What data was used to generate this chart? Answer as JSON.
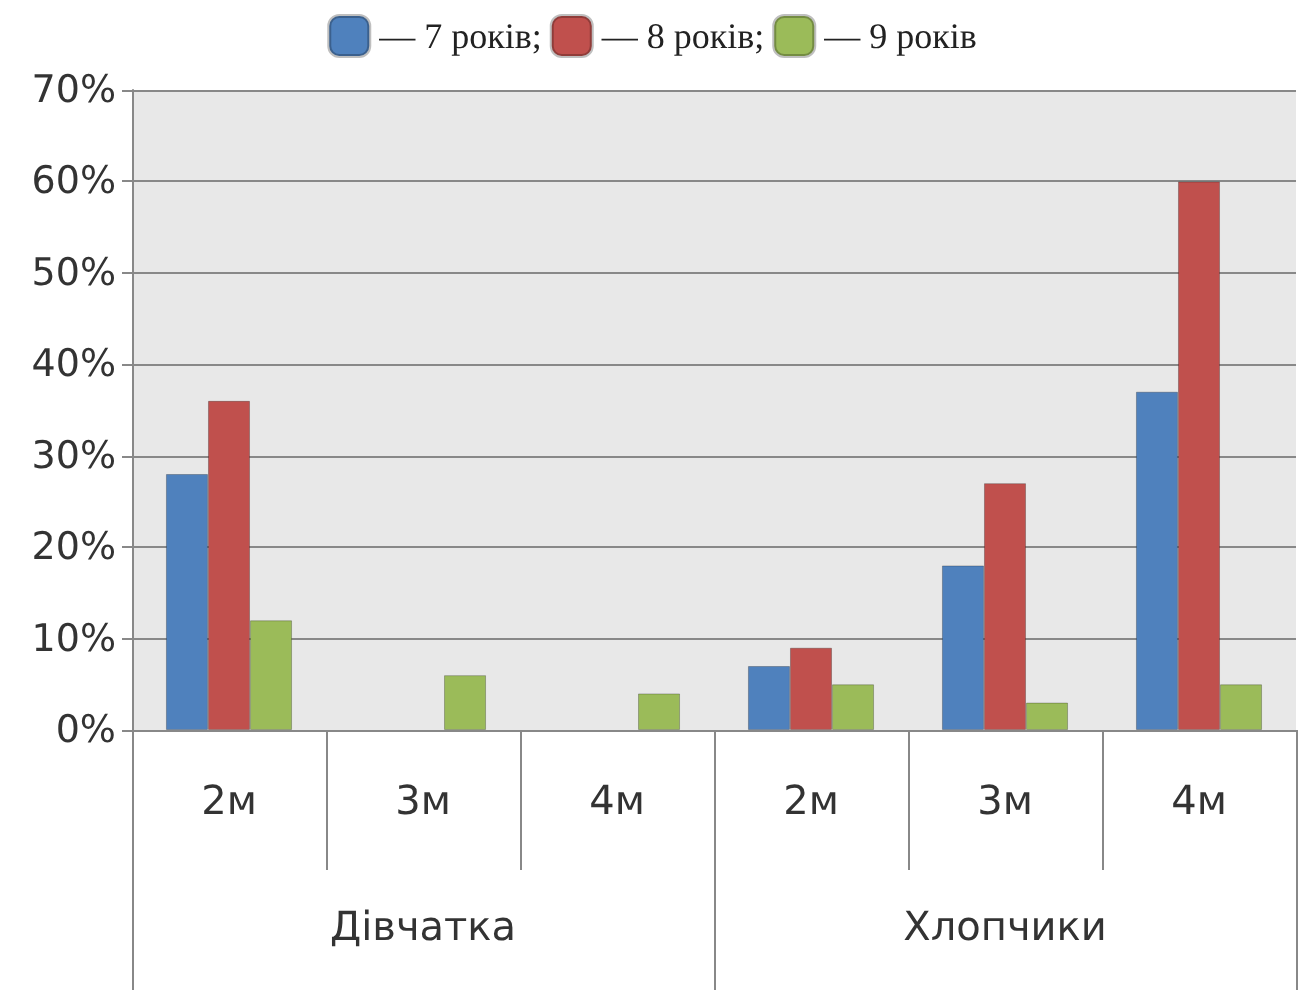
{
  "chart_data": {
    "type": "bar",
    "categories": [
      "2м",
      "3м",
      "4м",
      "2м",
      "3м",
      "4м"
    ],
    "annotations": [
      "Дівчатка",
      "Хлопчики"
    ],
    "series": [
      {
        "name": "— 7 років;",
        "color": "#4f81bd",
        "values": [
          28,
          null,
          null,
          7,
          18,
          37
        ]
      },
      {
        "name": "— 8 років;",
        "color": "#c0504d",
        "values": [
          36,
          null,
          null,
          9,
          27,
          60
        ]
      },
      {
        "name": "— 9 років",
        "color": "#9bbb59",
        "values": [
          12,
          6,
          4,
          5,
          3,
          5
        ]
      }
    ],
    "ylim": [
      0,
      70
    ],
    "yticks": [
      {
        "value": 0,
        "label": "0%"
      },
      {
        "value": 10,
        "label": "10%"
      },
      {
        "value": 20,
        "label": "20%"
      },
      {
        "value": 30,
        "label": "30%"
      },
      {
        "value": 40,
        "label": "40%"
      },
      {
        "value": 50,
        "label": "50%"
      },
      {
        "value": 60,
        "label": "60%"
      },
      {
        "value": 70,
        "label": "70%"
      }
    ],
    "grid": "y",
    "legend": "top"
  }
}
